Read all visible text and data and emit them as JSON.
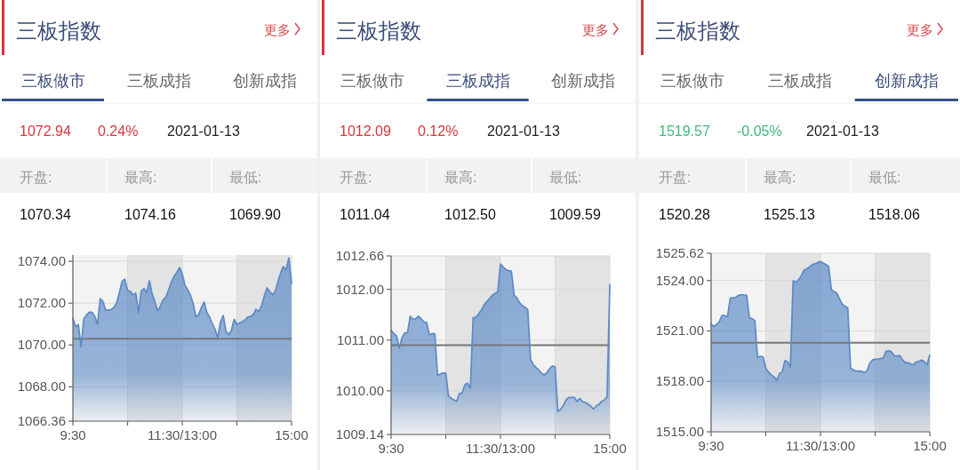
{
  "chart_data": [
    {
      "type": "area",
      "title": "三板指数",
      "annotations": [
        "更多",
        "三板做市",
        "三板成指",
        "创新成指",
        "1072.94",
        "0.24%",
        "2021-01-13",
        "开盘:",
        "最高:",
        "最低:",
        "1070.34",
        "1074.16",
        "1069.90"
      ],
      "color": "#5b8ac6",
      "grid": true,
      "ylim": [
        1066.36,
        1074.3
      ],
      "yticks": [
        1066.36,
        {
          "value": 1068,
          "label": "1068.00"
        },
        {
          "value": 1070,
          "label": "1070.00"
        },
        {
          "value": 1072,
          "label": "1072.00"
        },
        {
          "value": 1074,
          "label": "1074.00"
        }
      ],
      "ref_lines": [
        {
          "axis": "y",
          "value": 1070.3,
          "color": "#777777"
        }
      ],
      "categories": [
        "9:30",
        null,
        null,
        null,
        null,
        null,
        null,
        null,
        null,
        null,
        null,
        null,
        null,
        null,
        null,
        null,
        null,
        null,
        null,
        null,
        null,
        null,
        null,
        null,
        null,
        null,
        null,
        null,
        null,
        null,
        null,
        null,
        null,
        null,
        null,
        null,
        null,
        null,
        null,
        null,
        "11:30/13:00",
        null,
        null,
        null,
        null,
        null,
        null,
        null,
        null,
        null,
        null,
        null,
        null,
        null,
        null,
        null,
        null,
        null,
        null,
        null,
        null,
        null,
        null,
        null,
        null,
        null,
        null,
        null,
        null,
        null,
        null,
        null,
        null,
        null,
        null,
        null,
        null,
        null,
        null,
        null,
        "15:00"
      ],
      "values": [
        1071.27,
        1070.87,
        1070.97,
        1069.9,
        1071.25,
        1071.43,
        1071.57,
        1071.56,
        1071.37,
        1070.99,
        1072.22,
        1072.08,
        1071.65,
        1071.67,
        1071.69,
        1071.79,
        1072.01,
        1072.5,
        1073.04,
        1073.15,
        1072.61,
        1072.57,
        1072.4,
        1072.47,
        1071.55,
        1072.58,
        1072.7,
        1072.5,
        1073.07,
        1072.45,
        1072.06,
        1071.63,
        1071.85,
        1072.15,
        1072.28,
        1072.62,
        1073.0,
        1073.28,
        1073.47,
        1073.7,
        1073.4,
        1072.86,
        1072.64,
        1072.38,
        1071.98,
        1071.34,
        1071.45,
        1071.79,
        1072.05,
        1071.55,
        1071.34,
        1071.02,
        1070.75,
        1070.35,
        1071.1,
        1071.41,
        1070.65,
        1070.49,
        1070.7,
        1071.22,
        1070.99,
        1071.05,
        1071.11,
        1071.2,
        1071.33,
        1071.36,
        1071.46,
        1071.7,
        1071.59,
        1071.86,
        1072.33,
        1072.73,
        1072.56,
        1072.4,
        1072.56,
        1073.03,
        1073.44,
        1073.75,
        1073.6,
        1074.16,
        1072.94
      ]
    },
    {
      "type": "area",
      "title": "三板指数",
      "annotations": [
        "更多",
        "三板做市",
        "三板成指",
        "创新成指",
        "1012.09",
        "0.12%",
        "2021-01-13",
        "开盘:",
        "最高:",
        "最低:",
        "1011.04",
        "1012.50",
        "1009.59"
      ],
      "color": "#5b8ac6",
      "grid": true,
      "ylim": [
        1009.14,
        1012.66
      ],
      "yticks": [
        1009.14,
        {
          "value": 1010,
          "label": "1010.00"
        },
        {
          "value": 1011,
          "label": "1011.00"
        },
        {
          "value": 1012,
          "label": "1012.00"
        },
        1012.66
      ],
      "ref_lines": [
        {
          "axis": "y",
          "value": 1010.9,
          "color": "#777777"
        }
      ],
      "categories": [
        "9:30",
        null,
        null,
        null,
        null,
        null,
        null,
        null,
        null,
        null,
        null,
        null,
        null,
        null,
        null,
        null,
        null,
        null,
        null,
        null,
        null,
        null,
        null,
        null,
        null,
        null,
        null,
        null,
        null,
        null,
        null,
        null,
        null,
        null,
        null,
        null,
        null,
        null,
        null,
        null,
        "11:30/13:00",
        null,
        null,
        null,
        null,
        null,
        null,
        null,
        null,
        null,
        null,
        null,
        null,
        null,
        null,
        null,
        null,
        null,
        null,
        null,
        null,
        null,
        null,
        null,
        null,
        null,
        null,
        null,
        null,
        null,
        null,
        null,
        null,
        null,
        null,
        null,
        null,
        null,
        null,
        null,
        "15:00"
      ],
      "values": [
        1011.19,
        1011.13,
        1011.08,
        1010.84,
        1011.05,
        1011.14,
        1011.15,
        1011.47,
        1011.41,
        1011.42,
        1011.47,
        1011.42,
        1011.36,
        1011.35,
        1011.1,
        1011.13,
        1011.12,
        1010.3,
        1010.33,
        1010.35,
        1010.35,
        1009.9,
        1009.85,
        1009.82,
        1009.79,
        1009.95,
        1009.96,
        1010.12,
        1010.15,
        1010.05,
        1011.44,
        1011.45,
        1011.51,
        1011.59,
        1011.69,
        1011.76,
        1011.82,
        1011.88,
        1011.92,
        1011.95,
        1012.5,
        1012.44,
        1012.39,
        1012.37,
        1012.36,
        1011.89,
        1011.83,
        1011.74,
        1011.68,
        1011.65,
        1011.6,
        1010.62,
        1010.52,
        1010.46,
        1010.41,
        1010.35,
        1010.31,
        1010.36,
        1010.44,
        1010.49,
        1010.47,
        1009.59,
        1009.63,
        1009.71,
        1009.82,
        1009.87,
        1009.87,
        1009.87,
        1009.79,
        1009.85,
        1009.79,
        1009.77,
        1009.74,
        1009.7,
        1009.64,
        1009.7,
        1009.73,
        1009.79,
        1009.82,
        1009.88,
        1012.09
      ]
    },
    {
      "type": "area",
      "title": "三板指数",
      "annotations": [
        "更多",
        "三板做市",
        "三板成指",
        "创新成指",
        "1519.57",
        "-0.05%",
        "2021-01-13",
        "开盘:",
        "最高:",
        "最低:",
        "1520.28",
        "1525.13",
        "1518.06"
      ],
      "color": "#5b8ac6",
      "grid": true,
      "ylim": [
        1515,
        1525.62
      ],
      "yticks": [
        {
          "value": 1515,
          "label": "1515.00"
        },
        {
          "value": 1518,
          "label": "1518.00"
        },
        {
          "value": 1521,
          "label": "1521.00"
        },
        {
          "value": 1524,
          "label": "1524.00"
        },
        1525.62
      ],
      "ref_lines": [
        {
          "axis": "y",
          "value": 1520.3,
          "color": "#777777"
        }
      ],
      "categories": [
        "9:30",
        null,
        null,
        null,
        null,
        null,
        null,
        null,
        null,
        null,
        null,
        null,
        null,
        null,
        null,
        null,
        null,
        null,
        null,
        null,
        null,
        null,
        null,
        null,
        null,
        null,
        null,
        null,
        null,
        null,
        null,
        null,
        null,
        null,
        null,
        null,
        null,
        null,
        null,
        null,
        "11:30/13:00",
        null,
        null,
        null,
        null,
        null,
        null,
        null,
        null,
        null,
        null,
        null,
        null,
        null,
        null,
        null,
        null,
        null,
        null,
        null,
        null,
        null,
        null,
        null,
        null,
        null,
        null,
        null,
        null,
        null,
        null,
        null,
        null,
        null,
        null,
        null,
        null,
        null,
        null,
        null,
        "15:00"
      ],
      "values": [
        1521.42,
        1521.25,
        1521.38,
        1521.55,
        1521.92,
        1521.91,
        1521.83,
        1522.95,
        1522.97,
        1522.99,
        1523.12,
        1523.15,
        1523.13,
        1523.12,
        1521.77,
        1521.73,
        1521.62,
        1519.42,
        1519.49,
        1519.45,
        1518.78,
        1518.55,
        1518.38,
        1518.27,
        1518.06,
        1518.46,
        1518.55,
        1519.24,
        1519.17,
        1518.85,
        1523.98,
        1523.9,
        1524.04,
        1524.28,
        1524.62,
        1524.7,
        1524.8,
        1524.94,
        1525.0,
        1525.06,
        1525.13,
        1525.04,
        1524.95,
        1524.84,
        1523.45,
        1523.34,
        1523.24,
        1522.9,
        1522.58,
        1522.46,
        1522.37,
        1518.8,
        1518.68,
        1518.62,
        1518.61,
        1518.6,
        1518.53,
        1518.6,
        1519.05,
        1519.27,
        1519.31,
        1519.31,
        1519.36,
        1519.4,
        1519.79,
        1519.82,
        1519.75,
        1519.53,
        1519.5,
        1519.54,
        1519.28,
        1519.13,
        1519.1,
        1519.04,
        1518.99,
        1519.14,
        1519.19,
        1519.26,
        1519.18,
        1518.98,
        1519.57
      ]
    }
  ]
}
